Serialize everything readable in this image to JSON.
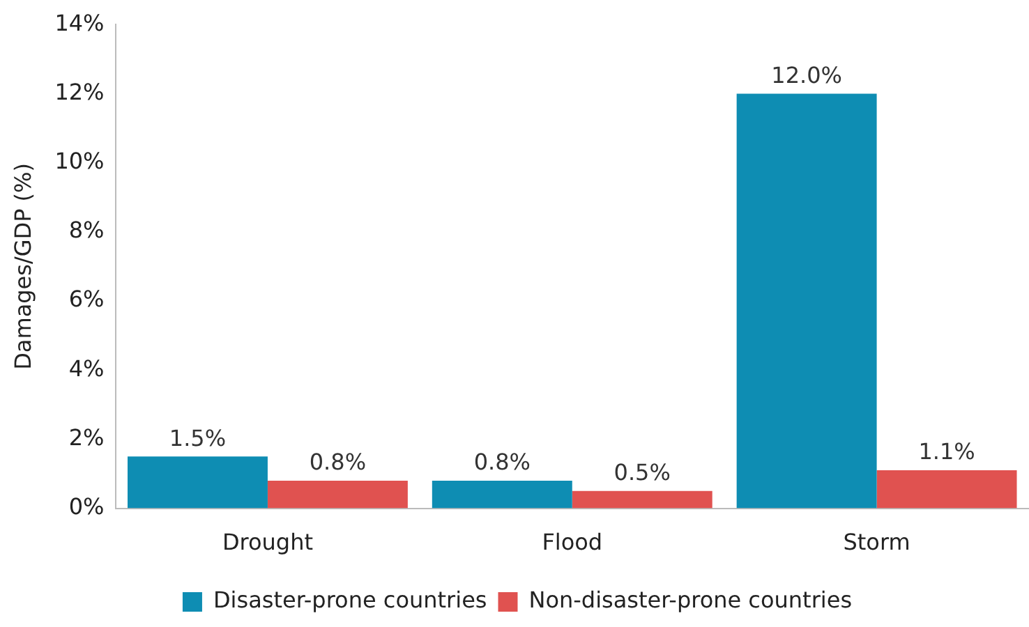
{
  "chart_data": {
    "type": "bar",
    "ylabel": "Damages/GDP (%)",
    "categories": [
      "Drought",
      "Flood",
      "Storm"
    ],
    "series": [
      {
        "name": "Disaster-prone countries",
        "color": "#0e8db3",
        "values": [
          1.5,
          0.8,
          12.0
        ],
        "value_labels": [
          "1.5%",
          "0.8%",
          "12.0%"
        ]
      },
      {
        "name": "Non-disaster-prone countries",
        "color": "#e05250",
        "values": [
          0.8,
          0.5,
          1.1
        ],
        "value_labels": [
          "0.8%",
          "0.5%",
          "1.1%"
        ]
      }
    ],
    "ylim": [
      0,
      14
    ],
    "yticks": [
      {
        "value": 0,
        "label": "0%"
      },
      {
        "value": 2,
        "label": "2%"
      },
      {
        "value": 4,
        "label": "4%"
      },
      {
        "value": 6,
        "label": "6%"
      },
      {
        "value": 8,
        "label": "8%"
      },
      {
        "value": 10,
        "label": "10%"
      },
      {
        "value": 12,
        "label": "12%"
      },
      {
        "value": 14,
        "label": "14%"
      }
    ],
    "grid": false,
    "legend": "bottom"
  }
}
